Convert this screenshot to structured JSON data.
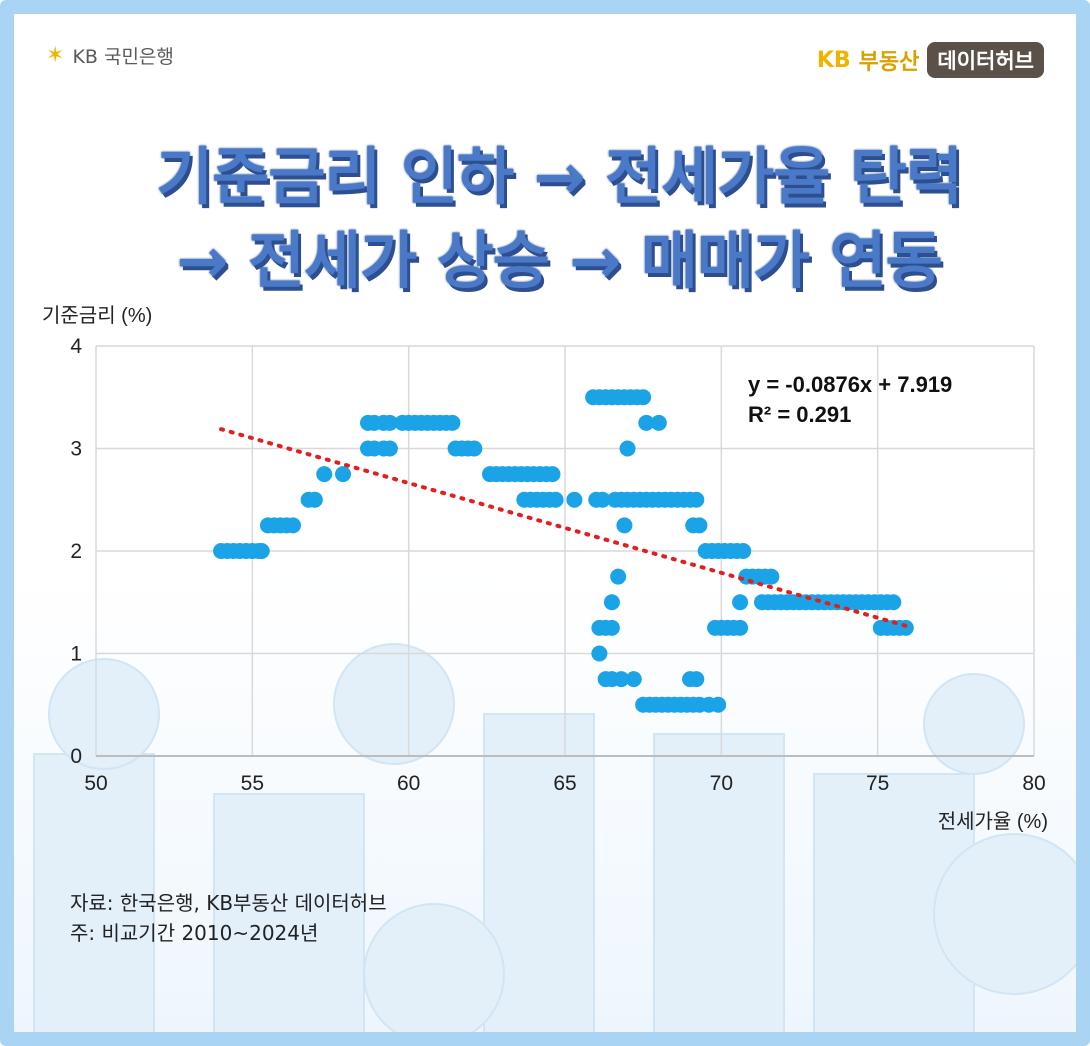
{
  "header": {
    "kb_logo_mark": "KB",
    "bank_name": "KB 국민은행",
    "brand_kb": "KB",
    "brand_name": "부동산",
    "brand_pill": "데이터허브"
  },
  "headline": {
    "line1": "기준금리 인하 → 전세가율 탄력",
    "line2": "→ 전세가 상승 → 매매가 연동"
  },
  "notes": {
    "source": "자료: 한국은행, KB부동산 데이터허브",
    "period": "주: 비교기간 2010~2024년"
  },
  "colors": {
    "points": "#1aa3e6",
    "trendline": "#e02020",
    "grid": "#d9d9d9",
    "headline": "#4a79c8",
    "border": "#a9d4f3"
  },
  "chart_data": {
    "type": "scatter",
    "title": "",
    "xlabel": "전세가율 (%)",
    "ylabel": "기준금리 (%)",
    "xlim": [
      50,
      80
    ],
    "ylim": [
      0,
      4
    ],
    "x_ticks": [
      "50",
      "55",
      "60",
      "65",
      "70",
      "75",
      "80"
    ],
    "y_ticks": [
      "0",
      "1",
      "2",
      "3",
      "4"
    ],
    "grid": true,
    "legend": "none",
    "trendline": {
      "equation": "y = -0.0876x + 7.919",
      "r_squared": "R² = 0.291",
      "slope": -0.0876,
      "intercept": 7.919,
      "x_range": [
        54.0,
        75.9
      ],
      "style": "dotted"
    },
    "points": [
      [
        54.0,
        2.0
      ],
      [
        54.2,
        2.0
      ],
      [
        54.4,
        2.0
      ],
      [
        54.6,
        2.0
      ],
      [
        54.8,
        2.0
      ],
      [
        55.0,
        2.0
      ],
      [
        55.2,
        2.0
      ],
      [
        55.3,
        2.0
      ],
      [
        55.5,
        2.25
      ],
      [
        55.7,
        2.25
      ],
      [
        55.9,
        2.25
      ],
      [
        56.1,
        2.25
      ],
      [
        56.3,
        2.25
      ],
      [
        56.8,
        2.5
      ],
      [
        57.0,
        2.5
      ],
      [
        57.3,
        2.75
      ],
      [
        57.9,
        2.75
      ],
      [
        58.7,
        3.0
      ],
      [
        58.9,
        3.0
      ],
      [
        59.2,
        3.0
      ],
      [
        59.4,
        3.0
      ],
      [
        58.7,
        3.25
      ],
      [
        58.9,
        3.25
      ],
      [
        59.2,
        3.25
      ],
      [
        59.4,
        3.25
      ],
      [
        59.8,
        3.25
      ],
      [
        60.0,
        3.25
      ],
      [
        60.2,
        3.25
      ],
      [
        60.4,
        3.25
      ],
      [
        60.6,
        3.25
      ],
      [
        60.8,
        3.25
      ],
      [
        61.0,
        3.25
      ],
      [
        61.2,
        3.25
      ],
      [
        61.4,
        3.25
      ],
      [
        61.5,
        3.0
      ],
      [
        61.7,
        3.0
      ],
      [
        61.9,
        3.0
      ],
      [
        62.1,
        3.0
      ],
      [
        62.6,
        2.75
      ],
      [
        62.8,
        2.75
      ],
      [
        63.0,
        2.75
      ],
      [
        63.2,
        2.75
      ],
      [
        63.4,
        2.75
      ],
      [
        63.6,
        2.75
      ],
      [
        63.8,
        2.75
      ],
      [
        64.0,
        2.75
      ],
      [
        64.2,
        2.75
      ],
      [
        64.4,
        2.75
      ],
      [
        64.6,
        2.75
      ],
      [
        63.7,
        2.5
      ],
      [
        63.9,
        2.5
      ],
      [
        64.1,
        2.5
      ],
      [
        64.3,
        2.5
      ],
      [
        64.5,
        2.5
      ],
      [
        64.7,
        2.5
      ],
      [
        65.3,
        2.5
      ],
      [
        65.9,
        3.5
      ],
      [
        66.1,
        3.5
      ],
      [
        66.3,
        3.5
      ],
      [
        66.5,
        3.5
      ],
      [
        66.7,
        3.5
      ],
      [
        66.9,
        3.5
      ],
      [
        67.1,
        3.5
      ],
      [
        67.3,
        3.5
      ],
      [
        67.5,
        3.5
      ],
      [
        67.0,
        3.0
      ],
      [
        67.6,
        3.25
      ],
      [
        68.0,
        3.25
      ],
      [
        66.0,
        2.5
      ],
      [
        66.2,
        2.5
      ],
      [
        66.6,
        2.5
      ],
      [
        66.8,
        2.5
      ],
      [
        67.0,
        2.5
      ],
      [
        67.2,
        2.5
      ],
      [
        67.4,
        2.5
      ],
      [
        67.6,
        2.5
      ],
      [
        67.8,
        2.5
      ],
      [
        68.0,
        2.5
      ],
      [
        68.2,
        2.5
      ],
      [
        68.4,
        2.5
      ],
      [
        68.6,
        2.5
      ],
      [
        68.8,
        2.5
      ],
      [
        69.0,
        2.5
      ],
      [
        69.2,
        2.5
      ],
      [
        66.9,
        2.25
      ],
      [
        69.1,
        2.25
      ],
      [
        69.3,
        2.25
      ],
      [
        69.5,
        2.0
      ],
      [
        69.7,
        2.0
      ],
      [
        69.9,
        2.0
      ],
      [
        70.1,
        2.0
      ],
      [
        70.3,
        2.0
      ],
      [
        70.5,
        2.0
      ],
      [
        70.7,
        2.0
      ],
      [
        70.8,
        1.75
      ],
      [
        71.0,
        1.75
      ],
      [
        71.2,
        1.75
      ],
      [
        71.4,
        1.75
      ],
      [
        71.6,
        1.75
      ],
      [
        66.7,
        1.75
      ],
      [
        66.5,
        1.5
      ],
      [
        70.6,
        1.5
      ],
      [
        71.3,
        1.5
      ],
      [
        71.5,
        1.5
      ],
      [
        71.7,
        1.5
      ],
      [
        71.9,
        1.5
      ],
      [
        72.1,
        1.5
      ],
      [
        72.3,
        1.5
      ],
      [
        72.5,
        1.5
      ],
      [
        72.7,
        1.5
      ],
      [
        72.9,
        1.5
      ],
      [
        73.1,
        1.5
      ],
      [
        73.3,
        1.5
      ],
      [
        73.5,
        1.5
      ],
      [
        73.7,
        1.5
      ],
      [
        73.9,
        1.5
      ],
      [
        74.1,
        1.5
      ],
      [
        74.3,
        1.5
      ],
      [
        74.5,
        1.5
      ],
      [
        74.7,
        1.5
      ],
      [
        74.9,
        1.5
      ],
      [
        75.1,
        1.5
      ],
      [
        75.3,
        1.5
      ],
      [
        75.5,
        1.5
      ],
      [
        66.1,
        1.25
      ],
      [
        66.3,
        1.25
      ],
      [
        66.5,
        1.25
      ],
      [
        69.8,
        1.25
      ],
      [
        70.0,
        1.25
      ],
      [
        70.2,
        1.25
      ],
      [
        70.4,
        1.25
      ],
      [
        70.6,
        1.25
      ],
      [
        75.1,
        1.25
      ],
      [
        75.3,
        1.25
      ],
      [
        75.5,
        1.25
      ],
      [
        75.7,
        1.25
      ],
      [
        75.9,
        1.25
      ],
      [
        66.1,
        1.0
      ],
      [
        66.3,
        0.75
      ],
      [
        66.5,
        0.75
      ],
      [
        66.8,
        0.75
      ],
      [
        67.2,
        0.75
      ],
      [
        69.0,
        0.75
      ],
      [
        69.2,
        0.75
      ],
      [
        67.5,
        0.5
      ],
      [
        67.7,
        0.5
      ],
      [
        67.9,
        0.5
      ],
      [
        68.1,
        0.5
      ],
      [
        68.3,
        0.5
      ],
      [
        68.5,
        0.5
      ],
      [
        68.7,
        0.5
      ],
      [
        68.9,
        0.5
      ],
      [
        69.1,
        0.5
      ],
      [
        69.3,
        0.5
      ],
      [
        69.6,
        0.5
      ],
      [
        69.9,
        0.5
      ]
    ]
  }
}
